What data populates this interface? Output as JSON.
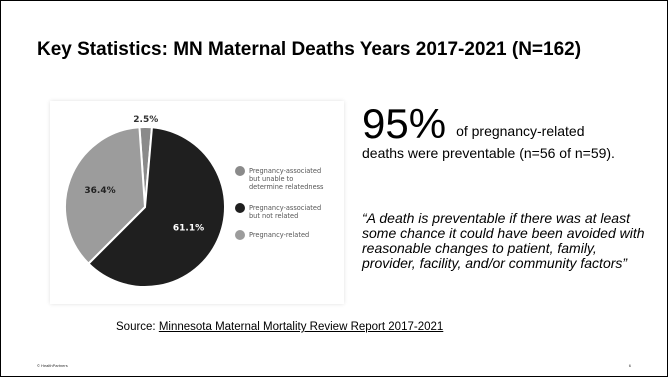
{
  "slide": {
    "title": "Key Statistics: MN Maternal Deaths Years 2017-2021 (N=162)",
    "stat_big": "95%",
    "stat_inline": "of pregnancy-related",
    "stat_rest": "deaths were preventable (n=56 of n=59).",
    "quote": "“A death is preventable if there was at least some chance it could have been avoided with reasonable changes to patient, family, provider, facility, and/or community factors”",
    "source_prefix": "Source: ",
    "source_link": "Minnesota Maternal Mortality Review Report 2017-2021",
    "footer_left": "© HealthPartners",
    "page_number": "6"
  },
  "chart_data": {
    "type": "pie",
    "slices": [
      {
        "label": "Pregnancy-associated but unable to determine relatedness",
        "value": 2.5,
        "value_label": "2.5%",
        "color": "#8a8a8a"
      },
      {
        "label": "Pregnancy-associated but not related",
        "value": 61.1,
        "value_label": "61.1%",
        "color": "#1f1f1f"
      },
      {
        "label": "Pregnancy-related",
        "value": 36.4,
        "value_label": "36.4%",
        "color": "#9c9c9c"
      }
    ],
    "legend_position": "right"
  }
}
